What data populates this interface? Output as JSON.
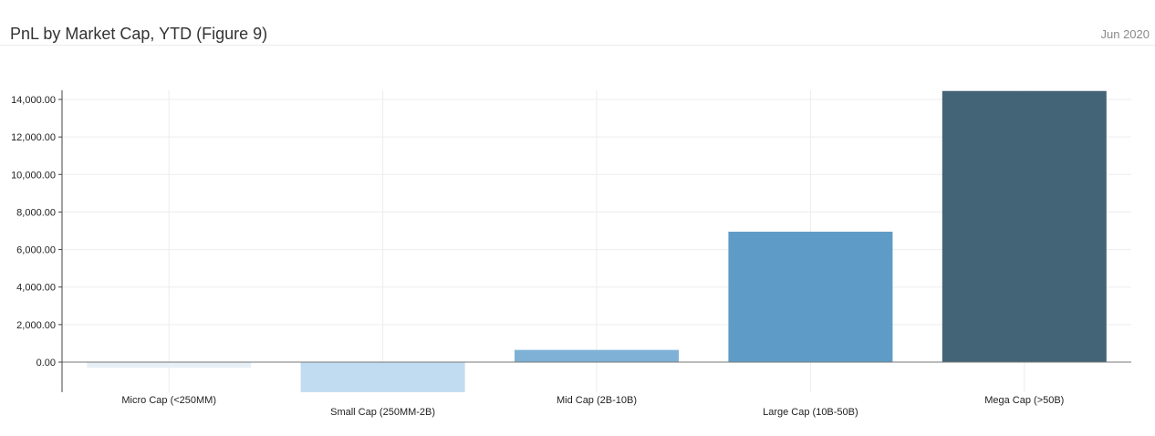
{
  "header": {
    "title": "PnL by Market Cap, YTD (Figure 9)",
    "date": "Jun 2020"
  },
  "chart_data": {
    "type": "bar",
    "title": "PnL by Market Cap, YTD (Figure 9)",
    "xlabel": "",
    "ylabel": "",
    "categories": [
      "Micro Cap (<250MM)",
      "Small Cap (250MM-2B)",
      "Mid Cap (2B-10B)",
      "Large Cap (10B-50B)",
      "Mega Cap (>50B)"
    ],
    "values": [
      -300,
      -1600,
      650,
      6950,
      14450
    ],
    "colors": [
      "#e8f0f6",
      "#c1dcf0",
      "#7eb1d5",
      "#5e9cc7",
      "#436476"
    ],
    "ylim": [
      -1600,
      14450
    ],
    "yticks": [
      0,
      2000,
      4000,
      6000,
      8000,
      10000,
      12000,
      14000
    ],
    "ytick_labels": [
      "0.00",
      "2,000.00",
      "4,000.00",
      "6,000.00",
      "8,000.00",
      "10,000.00",
      "12,000.00",
      "14,000.00"
    ],
    "grid": true,
    "legend": "none"
  }
}
